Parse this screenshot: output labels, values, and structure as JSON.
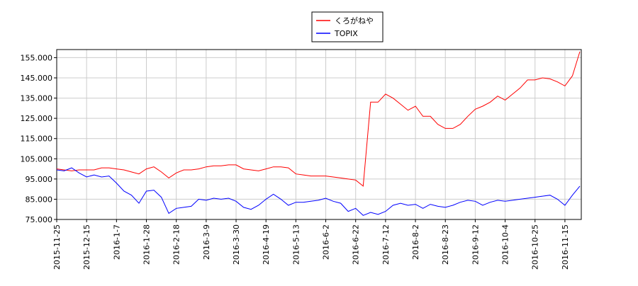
{
  "chart_data": {
    "type": "line",
    "categories": [
      "2015-11-25",
      null,
      null,
      null,
      "2015-12-15",
      null,
      null,
      null,
      "2016-1-7",
      null,
      null,
      null,
      "2016-1-28",
      null,
      null,
      null,
      "2016-2-18",
      null,
      null,
      null,
      "2016-3-9",
      null,
      null,
      null,
      "2016-3-30",
      null,
      null,
      null,
      "2016-4-19",
      null,
      null,
      null,
      "2016-5-13",
      null,
      null,
      null,
      "2016-6-2",
      null,
      null,
      null,
      "2016-6-22",
      null,
      null,
      null,
      "2016-7-12",
      null,
      null,
      null,
      "2016-8-2",
      null,
      null,
      null,
      "2016-8-23",
      null,
      null,
      null,
      "2016-9-12",
      null,
      null,
      null,
      "2016-10-4",
      null,
      null,
      null,
      "2016-10-25",
      null,
      null,
      null,
      "2016-11-15",
      null,
      null
    ],
    "series": [
      {
        "name": "くろがねや",
        "color": "#ff0000",
        "values": [
          100,
          99.5,
          99,
          99.5,
          99.5,
          99.5,
          100.5,
          100.5,
          100,
          99.5,
          98.5,
          97.5,
          100,
          101,
          98.5,
          95.5,
          98,
          99.5,
          99.5,
          100,
          101,
          101.5,
          101.5,
          102,
          102,
          100,
          99.5,
          99,
          100,
          101,
          101,
          100.5,
          97.5,
          97,
          96.5,
          96.5,
          96.5,
          96,
          95.5,
          95,
          94.5,
          91.5,
          133,
          133,
          137,
          135,
          132,
          129,
          131,
          126,
          126,
          122,
          120,
          120,
          122,
          126,
          129.5,
          131,
          133,
          136,
          134,
          137,
          140,
          144,
          144,
          145,
          144.5,
          143,
          141,
          146,
          158
        ]
      },
      {
        "name": "TOPIX",
        "color": "#0000ff",
        "values": [
          99.5,
          99,
          100.5,
          98,
          96,
          97,
          96,
          96.5,
          93,
          89,
          87,
          83,
          89,
          89.5,
          86,
          78,
          80.5,
          81,
          81.5,
          85,
          84.5,
          85.5,
          85,
          85.5,
          84,
          81,
          80,
          82,
          85,
          87.5,
          85,
          82,
          83.5,
          83.5,
          84,
          84.5,
          85.5,
          84,
          83,
          79,
          80.5,
          77,
          78.5,
          77.5,
          79,
          82,
          83,
          82,
          82.5,
          80.5,
          82.5,
          81.5,
          81,
          82,
          83.5,
          84.5,
          84,
          82,
          83.5,
          84.5,
          84,
          84.5,
          85,
          85.5,
          86,
          86.5,
          87,
          85,
          82,
          87,
          91.5
        ]
      }
    ],
    "ylim": [
      75,
      159
    ],
    "yticks": [
      {
        "value": 75,
        "label": "75.000"
      },
      {
        "value": 85,
        "label": "85.000"
      },
      {
        "value": 95,
        "label": "95.000"
      },
      {
        "value": 105,
        "label": "105.000"
      },
      {
        "value": 115,
        "label": "115.000"
      },
      {
        "value": 125,
        "label": "125.000"
      },
      {
        "value": 135,
        "label": "135.000"
      },
      {
        "value": 145,
        "label": "145.000"
      },
      {
        "value": 155,
        "label": "155.000"
      }
    ],
    "grid": true,
    "legend": "top"
  }
}
